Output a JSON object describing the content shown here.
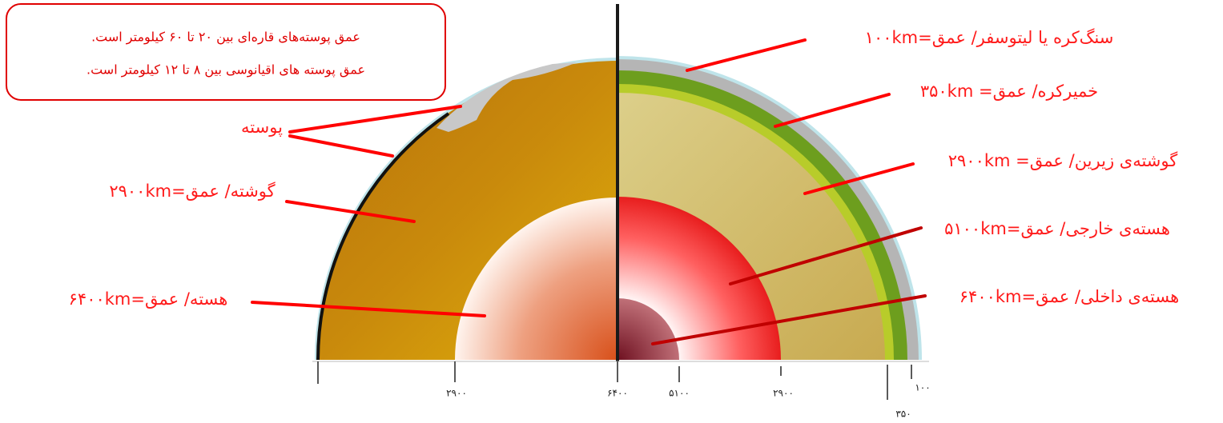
{
  "callout": {
    "lines": [
      "عمق پوسته‌های قاره‌ای بین ۲۰ تا ۶۰ کیلومتر است.",
      "عمق پوسته های اقیانوسی بین ۸ تا ۱۲ کیلومتر است."
    ]
  },
  "left_labels": [
    "پوسته",
    "گوشته/ عمق=۲۹۰۰km",
    "هسته/ عمق=۶۴۰۰km"
  ],
  "right_labels": [
    "سنگ‌کره یا لیتوسفر/ عمق=۱۰۰km",
    "خمیرکره/ عمق= ۳۵۰km",
    "گوشته‌ی زیرین/ عمق= ۲۹۰۰km",
    "هسته‌ی خارجی/ عمق=۵۱۰۰km",
    "هسته‌ی داخلی/ عمق=۶۴۰۰km"
  ],
  "scale_labels": [
    "۲۹۰۰",
    "۶۴۰۰",
    "۵۱۰۰",
    "۲۹۰۰",
    "۳۵۰",
    "۱۰۰"
  ]
}
